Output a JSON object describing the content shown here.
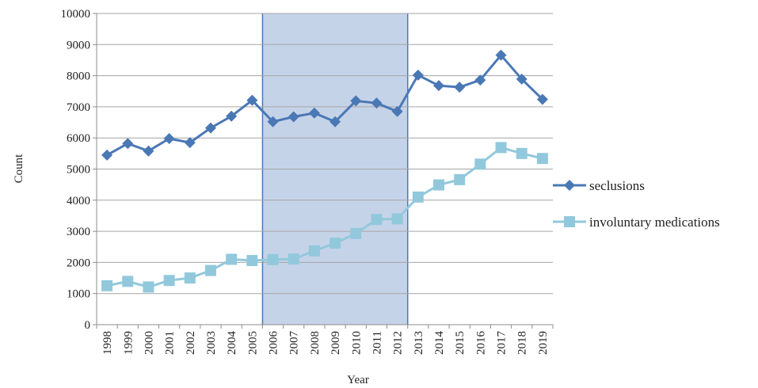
{
  "chart_data": {
    "type": "line",
    "xlabel": "Year",
    "ylabel": "Count",
    "ylim": [
      0,
      10000
    ],
    "yticks": [
      0,
      1000,
      2000,
      3000,
      4000,
      5000,
      6000,
      7000,
      8000,
      9000,
      10000
    ],
    "grid": "horizontal",
    "legend_position": "right",
    "categories": [
      "1998",
      "1999",
      "2000",
      "2001",
      "2002",
      "2003",
      "2004",
      "2005",
      "2006",
      "2007",
      "2008",
      "2009",
      "2010",
      "2011",
      "2012",
      "2013",
      "2014",
      "2015",
      "2016",
      "2017",
      "2018",
      "2019"
    ],
    "shaded_region": {
      "from": "2005.5",
      "to": "2012.5",
      "fill_color": "#c5d3e8",
      "border_color": "#4a78b5"
    },
    "series": [
      {
        "name": "seclusions",
        "marker": "diamond",
        "color": "#4a78b5",
        "values": [
          5450,
          5820,
          5580,
          5980,
          5850,
          6320,
          6700,
          7210,
          6520,
          6680,
          6800,
          6520,
          7190,
          7120,
          6850,
          8020,
          7680,
          7630,
          7860,
          8660,
          7890,
          7240
        ]
      },
      {
        "name": "involuntary medications",
        "marker": "square",
        "color": "#92c8dc",
        "values": [
          1250,
          1390,
          1210,
          1420,
          1500,
          1740,
          2100,
          2060,
          2090,
          2110,
          2370,
          2620,
          2930,
          3380,
          3400,
          4100,
          4490,
          4660,
          5160,
          5690,
          5500,
          5340
        ]
      }
    ]
  }
}
